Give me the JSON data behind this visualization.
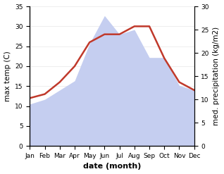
{
  "months": [
    "Jan",
    "Feb",
    "Mar",
    "Apr",
    "May",
    "Jun",
    "Jul",
    "Aug",
    "Sep",
    "Oct",
    "Nov",
    "Dec"
  ],
  "max_temp": [
    12,
    13,
    16,
    20,
    26,
    28,
    28,
    30,
    30,
    22,
    16,
    14
  ],
  "precipitation": [
    9,
    10,
    12,
    14,
    22,
    28,
    24,
    25,
    19,
    19,
    13,
    12
  ],
  "precip_fill_color": "#c5cef0",
  "precip_line_color": "#c5cef0",
  "temp_line_color": "#c0392b",
  "ylim_temp": [
    0,
    35
  ],
  "ylim_precip": [
    0,
    30
  ],
  "yticks_temp": [
    0,
    5,
    10,
    15,
    20,
    25,
    30,
    35
  ],
  "yticks_precip": [
    0,
    5,
    10,
    15,
    20,
    25,
    30
  ],
  "xlabel": "date (month)",
  "ylabel_left": "max temp (C)",
  "ylabel_right": "med. precipitation (kg/m2)",
  "bg_color": "#ffffff",
  "label_fontsize": 7.5,
  "tick_fontsize": 6.5,
  "xlabel_fontsize": 8
}
